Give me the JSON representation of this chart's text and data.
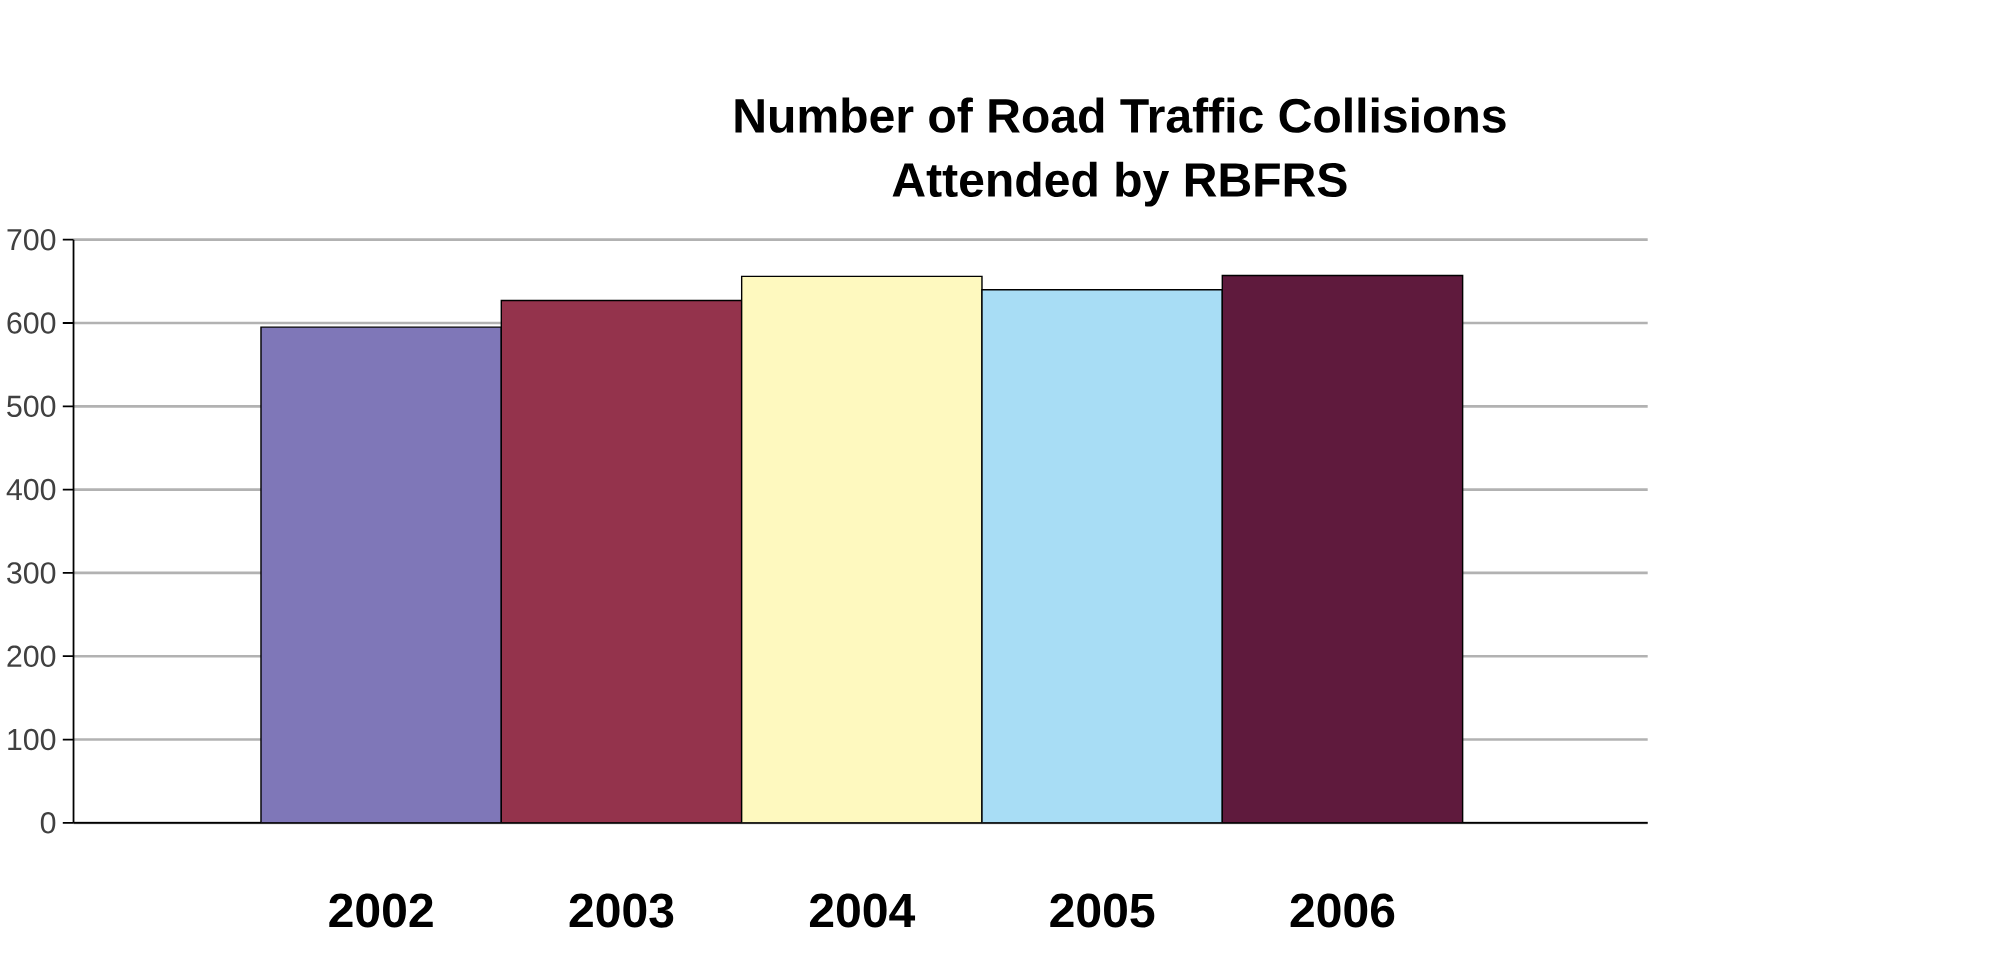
{
  "chart_data": {
    "type": "bar",
    "title": "Number of Road Traffic Collisions\nAttended by RBFRS",
    "categories": [
      "2002",
      "2003",
      "2004",
      "2005",
      "2006"
    ],
    "values": [
      595,
      627,
      656,
      640,
      657
    ],
    "colors": [
      "#7f77b8",
      "#94334c",
      "#fef9bf",
      "#a8ddf5",
      "#5f1a3d"
    ],
    "ylim": [
      0,
      700
    ],
    "yticks": [
      0,
      100,
      200,
      300,
      400,
      500,
      600,
      700
    ],
    "grid": "y"
  }
}
